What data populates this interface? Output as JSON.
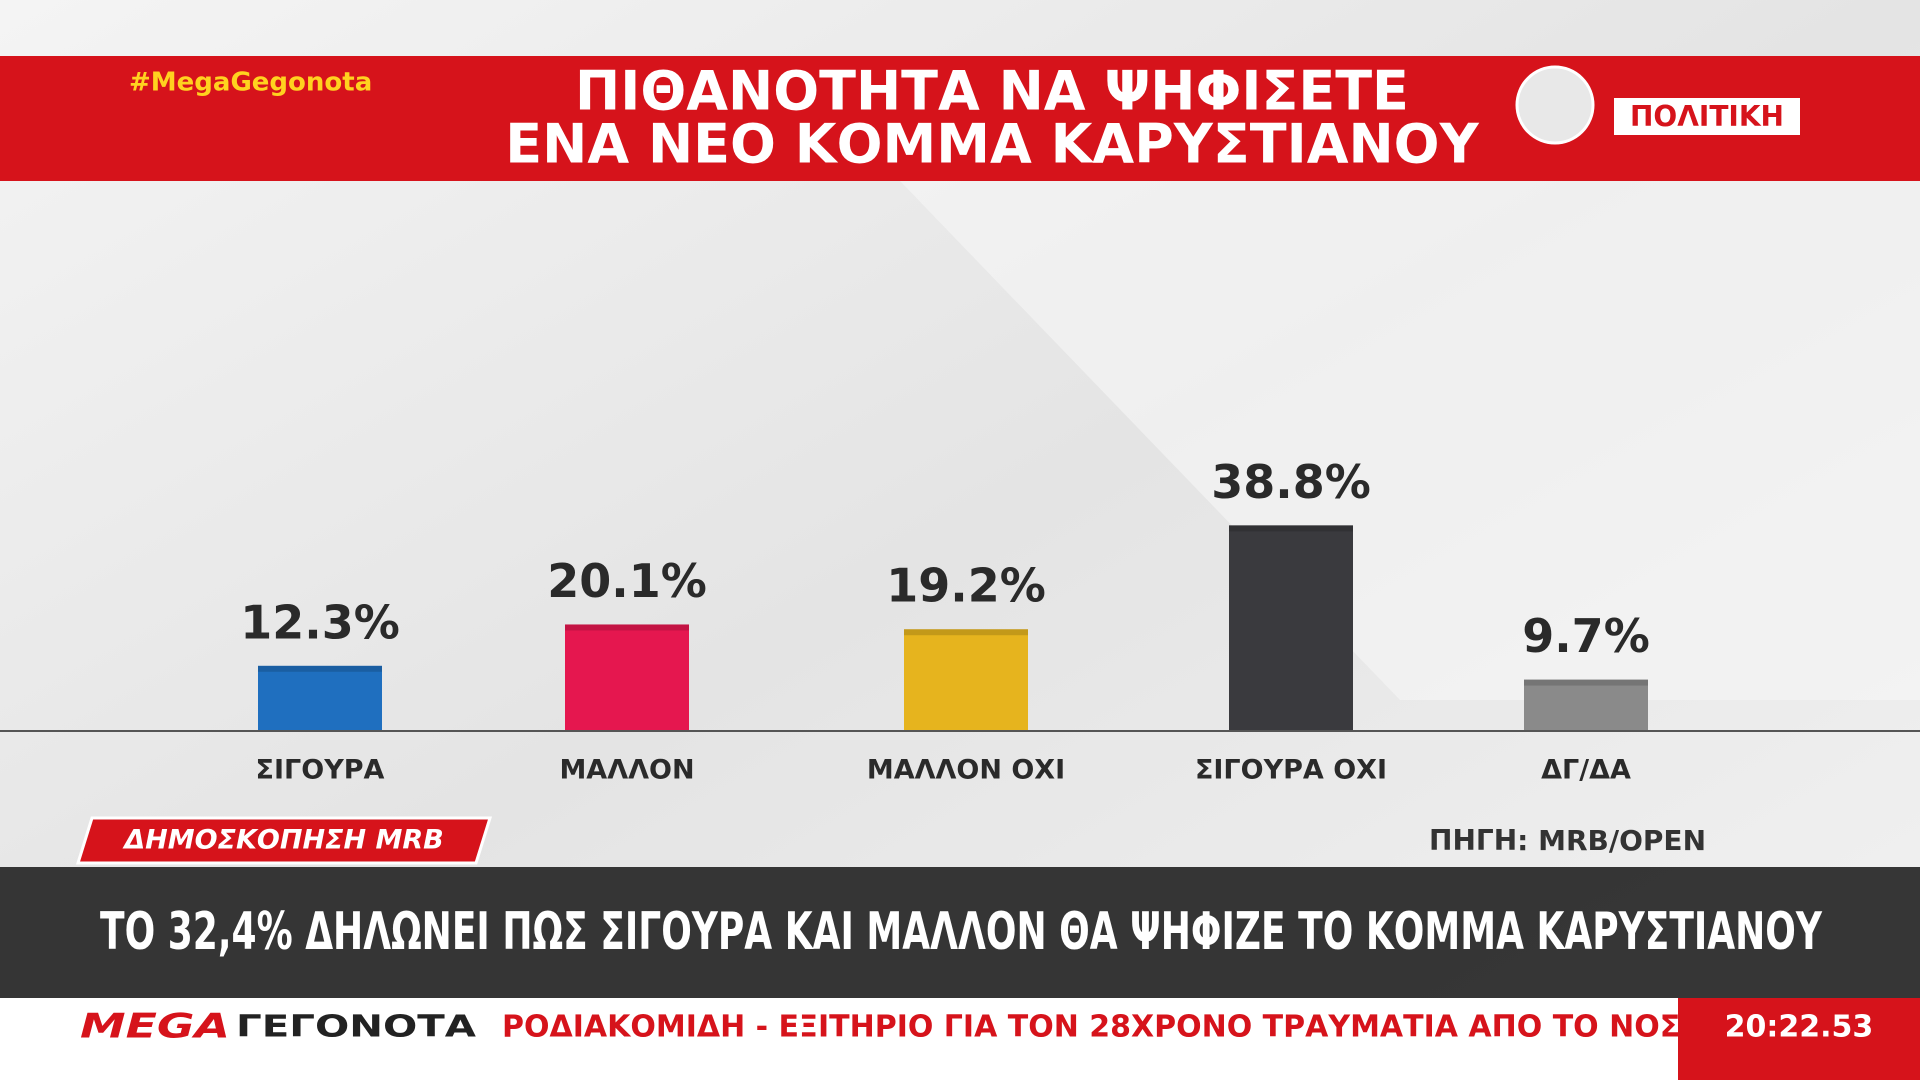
{
  "chart_data": {
    "type": "bar",
    "title": [
      "ΠΙΘΑΝΟΤΗΤΑ ΝΑ ΨΗΦΙΣΕΤΕ",
      "ΕΝΑ ΝΕΟ ΚΟΜΜΑ ΚΑΡΥΣΤΙΑΝΟΥ"
    ],
    "categories": [
      "ΣΙΓΟΥΡΑ",
      "ΜΑΛΛΟΝ",
      "ΜΑΛΛΟΝ ΟΧΙ",
      "ΣΙΓΟΥΡΑ ΟΧΙ",
      "ΔΓ/ΔΑ"
    ],
    "values": [
      12.3,
      20.1,
      19.2,
      38.8,
      9.7
    ],
    "value_labels": [
      "12.3%",
      "20.1%",
      "19.2%",
      "38.8%",
      "9.7%"
    ],
    "colors": [
      "#1f6fbf",
      "#e5174f",
      "#e6b41e",
      "#3a3a3e",
      "#8a8a8a"
    ]
  },
  "broadcast": {
    "hashtag": "#MegaGegonota",
    "section": "ΠΟΛΙΤΙΚΗ",
    "poll_tag": "ΔΗΜΟΣΚΟΠΗΣΗ MRB",
    "source": "ΠΗΓΗ: MRB/OPEN",
    "headline": "ΤΟ 32,4% ΔΗΛΩΝΕΙ ΠΩΣ ΣΙΓΟΥΡΑ ΚΑΙ ΜΑΛΛΟΝ ΘΑ ΨΗΦΙΖΕ ΤΟ ΚΟΜΜΑ ΚΑΡΥΣΤΙΑΝΟΥ",
    "channel": "MEGA",
    "program": "ΓΕΓΟΝΟΤΑ",
    "ticker": "ΡΟΔΙΑΚΟΜΙΔΗ - ΕΞΙΤΗΡΙΟ ΓΙΑ ΤΟΝ 28ΧΡΟΝΟ ΤΡΑΥΜΑΤΙΑ ΑΠΟ ΤΟ ΝΟΣ",
    "clock": "20:22.53"
  }
}
